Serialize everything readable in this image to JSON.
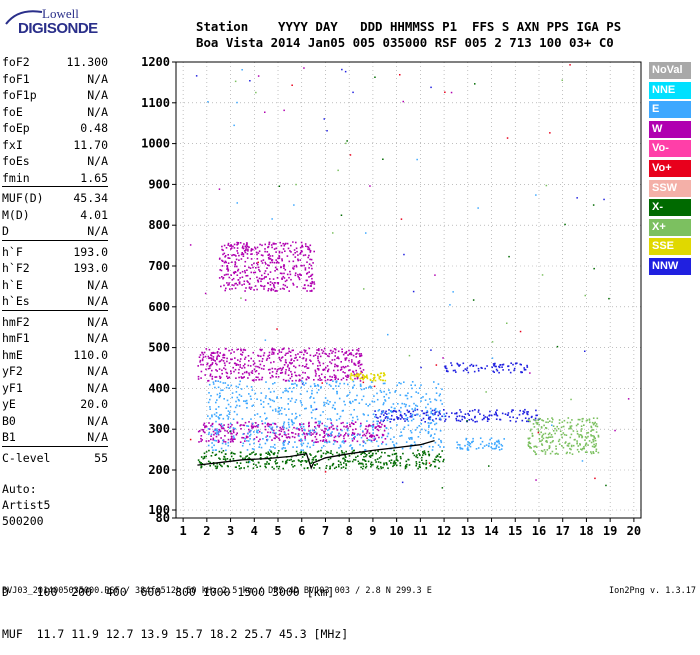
{
  "logo": {
    "line1": "Lowell",
    "line2": "DIGISONDE"
  },
  "header": {
    "row1": "Station    YYYY DAY   DDD HHMMSS P1  FFS S AXN PPS IGA PS",
    "row2": "Boa Vista 2014 Jan05 005 035000 RSF 005 2 713 100 03+ C0"
  },
  "params": [
    {
      "name": "foF2",
      "value": "11.300"
    },
    {
      "name": "foF1",
      "value": "N/A"
    },
    {
      "name": "foF1p",
      "value": "N/A"
    },
    {
      "name": "foE",
      "value": "N/A"
    },
    {
      "name": "foEp",
      "value": "0.48"
    },
    {
      "name": "fxI",
      "value": "11.70"
    },
    {
      "name": "foEs",
      "value": "N/A"
    },
    {
      "name": "fmin",
      "value": "1.65"
    },
    {
      "name": "MUF(D)",
      "value": "45.34"
    },
    {
      "name": "M(D)",
      "value": "4.01"
    },
    {
      "name": "D",
      "value": "N/A"
    },
    {
      "name": "h`F",
      "value": "193.0"
    },
    {
      "name": "h`F2",
      "value": "193.0"
    },
    {
      "name": "h`E",
      "value": "N/A"
    },
    {
      "name": "h`Es",
      "value": "N/A"
    },
    {
      "name": "hmF2",
      "value": "N/A"
    },
    {
      "name": "hmF1",
      "value": "N/A"
    },
    {
      "name": "hmE",
      "value": "110.0"
    },
    {
      "name": "yF2",
      "value": "N/A"
    },
    {
      "name": "yF1",
      "value": "N/A"
    },
    {
      "name": "yE",
      "value": "20.0"
    },
    {
      "name": "B0",
      "value": "N/A"
    },
    {
      "name": "B1",
      "value": "N/A"
    },
    {
      "name": "C-level",
      "value": "55"
    }
  ],
  "auto": {
    "line1": "Auto:",
    "line2": "Artist5",
    "line3": "500200"
  },
  "legend": [
    {
      "label": "NoVal",
      "color": "#a8a8a8"
    },
    {
      "label": "NNE",
      "color": "#00e0ff"
    },
    {
      "label": "E",
      "color": "#3ea8ff"
    },
    {
      "label": "W",
      "color": "#b000b0"
    },
    {
      "label": "Vo-",
      "color": "#ff3fa8"
    },
    {
      "label": "Vo+",
      "color": "#e8001c"
    },
    {
      "label": "SSW",
      "color": "#f4b0a8"
    },
    {
      "label": "X-",
      "color": "#006a00"
    },
    {
      "label": "X+",
      "color": "#7cc060"
    },
    {
      "label": "SSE",
      "color": "#e0d800"
    },
    {
      "label": "NNW",
      "color": "#2020e0"
    }
  ],
  "bottom": {
    "row1": "D    100  200  400  600  800 1000 1500 3000 [km]",
    "row2": "MUF  11.7 11.9 12.7 13.9 15.7 18.2 25.7 45.3 [MHz]"
  },
  "footer": {
    "left": "BVJ03_2014005035000.RSF / 384fx512h 50 kHz 2.5 km / DPS-4D BVJ03 003 / 2.8 N 299.3 E",
    "right": "Ion2Png v. 1.3.17"
  },
  "chart_data": {
    "type": "scatter",
    "x_ticks": [
      1,
      2,
      3,
      4,
      5,
      6,
      7,
      8,
      9,
      10,
      11,
      12,
      13,
      14,
      15,
      16,
      17,
      18,
      19,
      20
    ],
    "y_ticks": [
      80,
      100,
      200,
      300,
      400,
      500,
      600,
      700,
      800,
      900,
      1000,
      1100,
      1200
    ],
    "xlim": [
      0.7,
      20.3
    ],
    "ylim": [
      80,
      1210
    ],
    "grid": true,
    "trace": {
      "x": [
        1.6,
        2.5,
        3.5,
        4.5,
        5.5,
        6.2,
        6.4,
        6.5,
        7.0,
        8.0,
        9.0,
        10.0,
        11.0,
        11.6
      ],
      "y": [
        212,
        218,
        225,
        228,
        233,
        240,
        205,
        218,
        230,
        240,
        248,
        255,
        262,
        272
      ]
    },
    "echo_regions": [
      {
        "x": [
          1.6,
          12.0
        ],
        "y": [
          205,
          250
        ],
        "color": "#006a00"
      },
      {
        "x": [
          1.6,
          9.5
        ],
        "y": [
          270,
          320
        ],
        "color": "#b000b0"
      },
      {
        "x": [
          1.6,
          8.6
        ],
        "y": [
          420,
          500
        ],
        "color": "#b000b0"
      },
      {
        "x": [
          8.0,
          9.5
        ],
        "y": [
          420,
          440
        ],
        "color": "#e0d800"
      },
      {
        "x": [
          2.5,
          6.5
        ],
        "y": [
          640,
          760
        ],
        "color": "#b000b0"
      },
      {
        "x": [
          9.0,
          16.0
        ],
        "y": [
          320,
          350
        ],
        "color": "#2020e0"
      },
      {
        "x": [
          12.0,
          15.5
        ],
        "y": [
          440,
          465
        ],
        "color": "#2020e0"
      },
      {
        "x": [
          12.5,
          14.5
        ],
        "y": [
          250,
          280
        ],
        "color": "#3ea8ff"
      },
      {
        "x": [
          2.0,
          12.0
        ],
        "y": [
          250,
          420
        ],
        "color": "#3ea8ff"
      },
      {
        "x": [
          15.5,
          18.5
        ],
        "y": [
          240,
          330
        ],
        "color": "#7cc060"
      }
    ]
  }
}
